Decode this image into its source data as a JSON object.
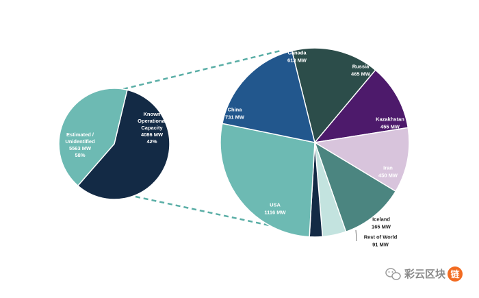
{
  "chart_data": [
    {
      "type": "pie",
      "title": "",
      "slices": [
        {
          "lines": [
            "Estimated /",
            "Unidentified",
            "5563 MW",
            "58%"
          ],
          "value": 5563,
          "color": "#132a45",
          "label_color": "#ffffff"
        },
        {
          "lines": [
            "Known",
            "Operational",
            "Capacity",
            "4086 MW",
            "42%"
          ],
          "value": 4086,
          "color": "#6dbab3",
          "label_color": "#ffffff"
        }
      ]
    },
    {
      "type": "pie",
      "title": "",
      "slices": [
        {
          "lines": [
            "Canada",
            "613 MW"
          ],
          "value": 613,
          "color": "#2c4d4a",
          "label_color": "#ffffff"
        },
        {
          "lines": [
            "Russia",
            "465 MW"
          ],
          "value": 465,
          "color": "#4d1a6b",
          "label_color": "#ffffff"
        },
        {
          "lines": [
            "Kazakhstan",
            "455 MW"
          ],
          "value": 455,
          "color": "#d8c4dc",
          "label_color": "#ffffff"
        },
        {
          "lines": [
            "Iran",
            "450 MW"
          ],
          "value": 450,
          "color": "#4b8580",
          "label_color": "#ffffff"
        },
        {
          "lines": [
            "Iceland",
            "165 MW"
          ],
          "value": 165,
          "color": "#c3e3df",
          "label_color": "#222222"
        },
        {
          "lines": [
            "Rest of World",
            "91 MW"
          ],
          "value": 91,
          "color": "#132a45",
          "label_color": "#222222"
        },
        {
          "lines": [
            "USA",
            "1116 MW"
          ],
          "value": 1116,
          "color": "#6dbab3",
          "label_color": "#ffffff"
        },
        {
          "lines": [
            "China",
            "731 MW"
          ],
          "value": 731,
          "color": "#22578d",
          "label_color": "#ffffff"
        }
      ]
    }
  ],
  "colors": {
    "connector": "#5aaea6",
    "slice_border": "#ffffff"
  },
  "watermark": {
    "text": "彩云区块",
    "badge_text": "链",
    "icon": "wechat-icon",
    "badge_color": "#f26b21"
  }
}
